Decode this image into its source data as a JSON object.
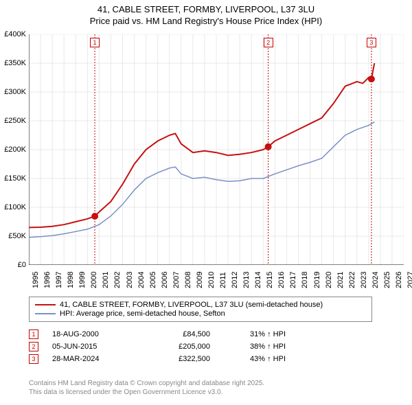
{
  "title": {
    "line1": "41, CABLE STREET, FORMBY, LIVERPOOL, L37 3LU",
    "line2": "Price paid vs. HM Land Registry's House Price Index (HPI)"
  },
  "chart": {
    "type": "line",
    "plot_bg": "#ffffff",
    "grid_color": "#e8e8e8",
    "y_axis": {
      "min": 0,
      "max": 400000,
      "tick_step": 50000,
      "ticks": [
        "£0",
        "£50K",
        "£100K",
        "£150K",
        "£200K",
        "£250K",
        "£300K",
        "£350K",
        "£400K"
      ],
      "label_fontsize": 11
    },
    "x_axis": {
      "min": 1995,
      "max": 2027,
      "ticks": [
        1995,
        1996,
        1997,
        1998,
        1999,
        2000,
        2001,
        2002,
        2003,
        2004,
        2005,
        2006,
        2007,
        2008,
        2009,
        2010,
        2011,
        2012,
        2013,
        2014,
        2015,
        2016,
        2017,
        2018,
        2019,
        2020,
        2021,
        2022,
        2023,
        2024,
        2025,
        2026,
        2027
      ],
      "label_fontsize": 11,
      "label_rotation": -90
    },
    "vlines": [
      {
        "x": 2000.63,
        "color": "#c00000",
        "dash": "2,2"
      },
      {
        "x": 2015.43,
        "color": "#c00000",
        "dash": "2,2"
      },
      {
        "x": 2024.24,
        "color": "#c00000",
        "dash": "2,2"
      }
    ],
    "markers": [
      {
        "n": "1",
        "x": 2000.63,
        "y_top": true
      },
      {
        "n": "2",
        "x": 2015.43,
        "y_top": true
      },
      {
        "n": "3",
        "x": 2024.24,
        "y_top": true
      }
    ],
    "series": [
      {
        "name": "price_paid",
        "color": "#c70f0f",
        "width": 2,
        "data": [
          [
            1995,
            65000
          ],
          [
            1996,
            65500
          ],
          [
            1997,
            67000
          ],
          [
            1998,
            70000
          ],
          [
            1999,
            75000
          ],
          [
            2000,
            80000
          ],
          [
            2000.63,
            84500
          ],
          [
            2001,
            92000
          ],
          [
            2002,
            110000
          ],
          [
            2003,
            140000
          ],
          [
            2004,
            175000
          ],
          [
            2005,
            200000
          ],
          [
            2006,
            215000
          ],
          [
            2007,
            225000
          ],
          [
            2007.5,
            228000
          ],
          [
            2008,
            210000
          ],
          [
            2009,
            195000
          ],
          [
            2010,
            198000
          ],
          [
            2011,
            195000
          ],
          [
            2012,
            190000
          ],
          [
            2013,
            192000
          ],
          [
            2014,
            195000
          ],
          [
            2015,
            200000
          ],
          [
            2015.43,
            205000
          ],
          [
            2016,
            215000
          ],
          [
            2017,
            225000
          ],
          [
            2018,
            235000
          ],
          [
            2019,
            245000
          ],
          [
            2020,
            255000
          ],
          [
            2021,
            280000
          ],
          [
            2022,
            310000
          ],
          [
            2023,
            318000
          ],
          [
            2023.5,
            315000
          ],
          [
            2024,
            325000
          ],
          [
            2024.24,
            322500
          ],
          [
            2024.5,
            350000
          ]
        ]
      },
      {
        "name": "hpi",
        "color": "#7a8fc4",
        "width": 1.5,
        "data": [
          [
            1995,
            48000
          ],
          [
            1996,
            49000
          ],
          [
            1997,
            51000
          ],
          [
            1998,
            54000
          ],
          [
            1999,
            58000
          ],
          [
            2000,
            62000
          ],
          [
            2001,
            70000
          ],
          [
            2002,
            85000
          ],
          [
            2003,
            105000
          ],
          [
            2004,
            130000
          ],
          [
            2005,
            150000
          ],
          [
            2006,
            160000
          ],
          [
            2007,
            168000
          ],
          [
            2007.5,
            170000
          ],
          [
            2008,
            158000
          ],
          [
            2009,
            150000
          ],
          [
            2010,
            152000
          ],
          [
            2011,
            148000
          ],
          [
            2012,
            145000
          ],
          [
            2013,
            146000
          ],
          [
            2014,
            150000
          ],
          [
            2015,
            150000
          ],
          [
            2016,
            158000
          ],
          [
            2017,
            165000
          ],
          [
            2018,
            172000
          ],
          [
            2019,
            178000
          ],
          [
            2020,
            185000
          ],
          [
            2021,
            205000
          ],
          [
            2022,
            225000
          ],
          [
            2023,
            235000
          ],
          [
            2024,
            242000
          ],
          [
            2024.5,
            248000
          ]
        ]
      }
    ],
    "point_markers": [
      {
        "x": 2000.63,
        "y": 84500,
        "color": "#c70f0f",
        "size": 5
      },
      {
        "x": 2015.43,
        "y": 205000,
        "color": "#c70f0f",
        "size": 5
      },
      {
        "x": 2024.24,
        "y": 322500,
        "color": "#c70f0f",
        "size": 5
      }
    ]
  },
  "legend": {
    "items": [
      {
        "color": "#c70f0f",
        "width": 2,
        "label": "41, CABLE STREET, FORMBY, LIVERPOOL, L37 3LU (semi-detached house)"
      },
      {
        "color": "#7a8fc4",
        "width": 1.5,
        "label": "HPI: Average price, semi-detached house, Sefton"
      }
    ]
  },
  "transactions": [
    {
      "n": "1",
      "date": "18-AUG-2000",
      "price": "£84,500",
      "delta": "31% ↑ HPI"
    },
    {
      "n": "2",
      "date": "05-JUN-2015",
      "price": "£205,000",
      "delta": "38% ↑ HPI"
    },
    {
      "n": "3",
      "date": "28-MAR-2024",
      "price": "£322,500",
      "delta": "43% ↑ HPI"
    }
  ],
  "license": {
    "line1": "Contains HM Land Registry data © Crown copyright and database right 2025.",
    "line2": "This data is licensed under the Open Government Licence v3.0."
  }
}
